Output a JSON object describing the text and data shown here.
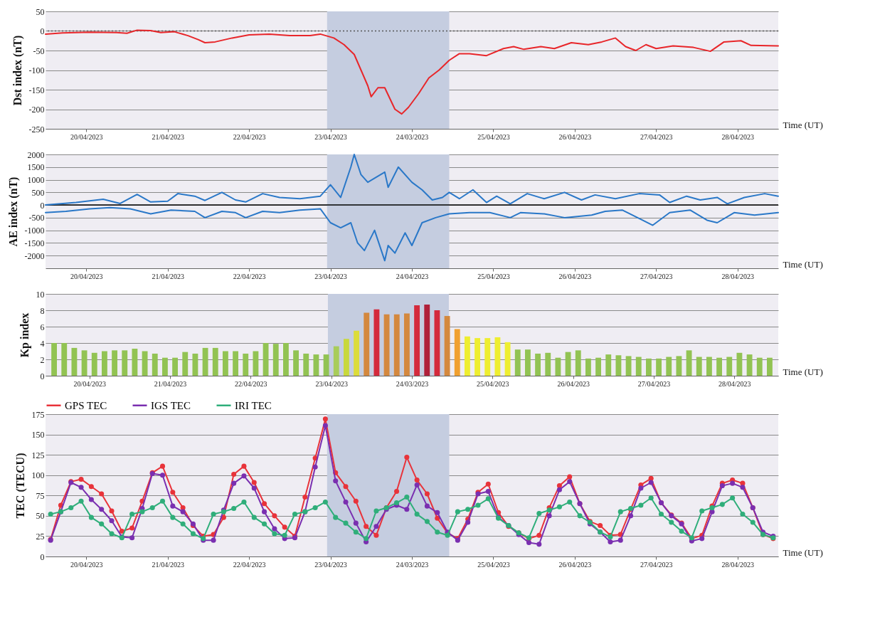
{
  "chart_data": [
    {
      "type": "line",
      "ylabel": "Dst index (nT)",
      "xlabel": "Time (UT)",
      "xlim": [
        "2023-04-20T00:00",
        "2023-04-29T00:00"
      ],
      "ylim": [
        -250,
        50
      ],
      "yticks": [
        -250,
        -200,
        -150,
        -100,
        -50,
        0,
        50
      ],
      "xticks": [
        {
          "value": "2023-04-20T12:00",
          "label": "20/04/2023"
        },
        {
          "value": "2023-04-21T12:00",
          "label": "21/04/2023"
        },
        {
          "value": "2023-04-22T12:00",
          "label": "22/04/2023"
        },
        {
          "value": "2023-04-23T12:00",
          "label": "23/04/2023"
        },
        {
          "value": "2023-04-24T12:00",
          "label": "24/03/2023"
        },
        {
          "value": "2023-04-25T12:00",
          "label": "25/04/2023"
        },
        {
          "value": "2023-04-26T12:00",
          "label": "26/04/2023"
        },
        {
          "value": "2023-04-27T12:00",
          "label": "27/04/2023"
        },
        {
          "value": "2023-04-28T12:00",
          "label": "28/04/2023"
        }
      ],
      "grid": "y",
      "bands": [
        {
          "axis": "x",
          "from": "2023-04-23T11:00",
          "to": "2023-04-24T23:00",
          "color": "#c5cde0"
        }
      ],
      "ref_lines": [
        {
          "axis": "y",
          "value": 0,
          "line_style": "dotted",
          "color": "#555555"
        }
      ],
      "series": [
        {
          "color": "#e8262a",
          "x": [
            "2023-04-20T00:00",
            "2023-04-20T05:00",
            "2023-04-20T13:00",
            "2023-04-20T21:00",
            "2023-04-21T00:00",
            "2023-04-21T03:00",
            "2023-04-21T07:00",
            "2023-04-21T10:00",
            "2023-04-21T14:00",
            "2023-04-21T18:00",
            "2023-04-21T21:00",
            "2023-04-21T23:00",
            "2023-04-22T02:00",
            "2023-04-22T07:00",
            "2023-04-22T12:00",
            "2023-04-22T18:00",
            "2023-04-23T00:00",
            "2023-04-23T06:00",
            "2023-04-23T09:00",
            "2023-04-23T13:00",
            "2023-04-23T16:00",
            "2023-04-23T19:00",
            "2023-04-23T21:00",
            "2023-04-23T23:00",
            "2023-04-24T00:00",
            "2023-04-24T02:00",
            "2023-04-24T04:00",
            "2023-04-24T07:00",
            "2023-04-24T09:00",
            "2023-04-24T11:00",
            "2023-04-24T14:00",
            "2023-04-24T17:00",
            "2023-04-24T20:00",
            "2023-04-24T23:00",
            "2023-04-25T02:00",
            "2023-04-25T05:00",
            "2023-04-25T10:00",
            "2023-04-25T15:00",
            "2023-04-25T18:00",
            "2023-04-25T21:00",
            "2023-04-26T02:00",
            "2023-04-26T06:00",
            "2023-04-26T11:00",
            "2023-04-26T16:00",
            "2023-04-26T20:00",
            "2023-04-27T00:00",
            "2023-04-27T03:00",
            "2023-04-27T06:00",
            "2023-04-27T09:00",
            "2023-04-27T12:00",
            "2023-04-27T17:00",
            "2023-04-27T23:00",
            "2023-04-28T04:00",
            "2023-04-28T08:00",
            "2023-04-28T13:00",
            "2023-04-28T16:00",
            "2023-04-29T00:00"
          ],
          "values": [
            -8,
            -5,
            -3,
            -4,
            -6,
            2,
            1,
            -4,
            -2,
            -12,
            -22,
            -30,
            -28,
            -18,
            -10,
            -8,
            -12,
            -12,
            -8,
            -18,
            -35,
            -60,
            -100,
            -140,
            -168,
            -145,
            -145,
            -200,
            -212,
            -195,
            -160,
            -120,
            -100,
            -75,
            -58,
            -58,
            -63,
            -45,
            -40,
            -47,
            -40,
            -45,
            -30,
            -35,
            -28,
            -18,
            -40,
            -50,
            -35,
            -45,
            -38,
            -42,
            -52,
            -28,
            -25,
            -37,
            -38
          ]
        }
      ]
    },
    {
      "type": "line",
      "ylabel": "AE index (nT)",
      "xlabel": "Time (UT)",
      "xlim": [
        "2023-04-20T00:00",
        "2023-04-29T00:00"
      ],
      "ylim": [
        -2500,
        2000
      ],
      "yticks": [
        -2000,
        -1500,
        -1000,
        -500,
        0,
        500,
        1000,
        1500,
        2000
      ],
      "xticks": [
        {
          "value": "2023-04-20T12:00",
          "label": "20/04/2023"
        },
        {
          "value": "2023-04-21T12:00",
          "label": "21/04/2023"
        },
        {
          "value": "2023-04-22T12:00",
          "label": "22/04/2023"
        },
        {
          "value": "2023-04-23T12:00",
          "label": "23/04/2023"
        },
        {
          "value": "2023-04-24T12:00",
          "label": "24/04/2023"
        },
        {
          "value": "2023-04-25T12:00",
          "label": "25/04/2023"
        },
        {
          "value": "2023-04-26T12:00",
          "label": "26/04/2023"
        },
        {
          "value": "2023-04-27T12:00",
          "label": "27/04/2023"
        },
        {
          "value": "2023-04-28T12:00",
          "label": "28/04/2023"
        }
      ],
      "grid": "y",
      "bands": [
        {
          "axis": "x",
          "from": "2023-04-23T11:00",
          "to": "2023-04-24T23:00",
          "color": "#c5cde0"
        }
      ],
      "ref_lines": [
        {
          "axis": "y",
          "value": 0,
          "line_style": "solid",
          "color": "#000000"
        }
      ],
      "series": [
        {
          "color": "#2a78c8",
          "x": [
            "2023-04-20T00:00",
            "2023-04-20T09:00",
            "2023-04-20T17:00",
            "2023-04-20T22:00",
            "2023-04-21T03:00",
            "2023-04-21T07:00",
            "2023-04-21T12:00",
            "2023-04-21T15:00",
            "2023-04-21T20:00",
            "2023-04-21T23:00",
            "2023-04-22T04:00",
            "2023-04-22T08:00",
            "2023-04-22T11:00",
            "2023-04-22T16:00",
            "2023-04-22T21:00",
            "2023-04-23T03:00",
            "2023-04-23T09:00",
            "2023-04-23T12:00",
            "2023-04-23T15:00",
            "2023-04-23T18:00",
            "2023-04-23T19:00",
            "2023-04-23T21:00",
            "2023-04-23T23:00",
            "2023-04-24T04:00",
            "2023-04-24T05:00",
            "2023-04-24T08:00",
            "2023-04-24T12:00",
            "2023-04-24T15:00",
            "2023-04-24T18:00",
            "2023-04-24T21:00",
            "2023-04-24T23:00",
            "2023-04-25T02:00",
            "2023-04-25T06:00",
            "2023-04-25T10:00",
            "2023-04-25T13:00",
            "2023-04-25T17:00",
            "2023-04-25T22:00",
            "2023-04-26T03:00",
            "2023-04-26T09:00",
            "2023-04-26T14:00",
            "2023-04-26T18:00",
            "2023-04-27T00:00",
            "2023-04-27T07:00",
            "2023-04-27T13:00",
            "2023-04-27T16:00",
            "2023-04-27T21:00",
            "2023-04-28T01:00",
            "2023-04-28T06:00",
            "2023-04-28T09:00",
            "2023-04-28T14:00",
            "2023-04-28T20:00",
            "2023-04-29T00:00"
          ],
          "values": [
            0,
            100,
            230,
            60,
            420,
            120,
            150,
            450,
            350,
            180,
            500,
            200,
            120,
            450,
            300,
            250,
            350,
            800,
            300,
            1500,
            2000,
            1200,
            900,
            1300,
            700,
            1500,
            900,
            600,
            200,
            300,
            500,
            250,
            600,
            100,
            350,
            50,
            450,
            250,
            500,
            200,
            400,
            250,
            450,
            400,
            100,
            350,
            200,
            300,
            50,
            300,
            450,
            350
          ]
        },
        {
          "color": "#2a78c8",
          "x": [
            "2023-04-20T00:00",
            "2023-04-20T06:00",
            "2023-04-20T13:00",
            "2023-04-20T19:00",
            "2023-04-21T01:00",
            "2023-04-21T07:00",
            "2023-04-21T13:00",
            "2023-04-21T20:00",
            "2023-04-21T23:00",
            "2023-04-22T04:00",
            "2023-04-22T08:00",
            "2023-04-22T11:00",
            "2023-04-22T16:00",
            "2023-04-22T21:00",
            "2023-04-23T03:00",
            "2023-04-23T09:00",
            "2023-04-23T12:00",
            "2023-04-23T15:00",
            "2023-04-23T18:00",
            "2023-04-23T20:00",
            "2023-04-23T22:00",
            "2023-04-24T01:00",
            "2023-04-24T04:00",
            "2023-04-24T05:00",
            "2023-04-24T07:00",
            "2023-04-24T10:00",
            "2023-04-24T12:00",
            "2023-04-24T15:00",
            "2023-04-24T19:00",
            "2023-04-24T23:00",
            "2023-04-25T05:00",
            "2023-04-25T11:00",
            "2023-04-25T17:00",
            "2023-04-25T20:00",
            "2023-04-26T03:00",
            "2023-04-26T09:00",
            "2023-04-26T17:00",
            "2023-04-26T21:00",
            "2023-04-27T02:00",
            "2023-04-27T08:00",
            "2023-04-27T11:00",
            "2023-04-27T16:00",
            "2023-04-27T22:00",
            "2023-04-28T03:00",
            "2023-04-28T06:00",
            "2023-04-28T11:00",
            "2023-04-28T17:00",
            "2023-04-29T00:00"
          ],
          "values": [
            -300,
            -250,
            -150,
            -100,
            -150,
            -350,
            -200,
            -250,
            -500,
            -250,
            -300,
            -500,
            -250,
            -300,
            -200,
            -150,
            -700,
            -900,
            -700,
            -1500,
            -1800,
            -1000,
            -2200,
            -1600,
            -1900,
            -1100,
            -1600,
            -700,
            -500,
            -350,
            -300,
            -300,
            -500,
            -300,
            -350,
            -500,
            -400,
            -250,
            -200,
            -600,
            -800,
            -300,
            -200,
            -600,
            -700,
            -300,
            -400,
            -300
          ]
        }
      ]
    },
    {
      "type": "bar",
      "ylabel": "Kp index",
      "xlabel": "Time (UT)",
      "xlim": [
        "2023-04-20T00:00",
        "2023-04-29T00:00"
      ],
      "ylim": [
        0,
        10
      ],
      "yticks": [
        0,
        2,
        4,
        6,
        8,
        10
      ],
      "xticks": [
        {
          "value": "2023-04-20T12:00",
          "label": "20/04/2023"
        },
        {
          "value": "2023-04-21T12:00",
          "label": "21/04/2023"
        },
        {
          "value": "2023-04-22T12:00",
          "label": "22/04/2023"
        },
        {
          "value": "2023-04-23T12:00",
          "label": "23/04/2023"
        },
        {
          "value": "2023-04-24T12:00",
          "label": "24/03/2023"
        },
        {
          "value": "2023-04-25T12:00",
          "label": "25/04/2023"
        },
        {
          "value": "2023-04-26T12:00",
          "label": "26/04/2023"
        },
        {
          "value": "2023-04-27T12:00",
          "label": "27/04/2023"
        },
        {
          "value": "2023-04-28T12:00",
          "label": "28/04/2023"
        }
      ],
      "grid": "y",
      "bands": [
        {
          "axis": "x",
          "from": "2023-04-23T11:00",
          "to": "2023-04-24T23:00",
          "color": "#c5cde0"
        }
      ],
      "x": [
        "2023-04-20T01:30",
        "2023-04-20T04:30",
        "2023-04-20T07:30",
        "2023-04-20T10:30",
        "2023-04-20T13:30",
        "2023-04-20T16:30",
        "2023-04-20T19:30",
        "2023-04-20T22:30",
        "2023-04-21T01:30",
        "2023-04-21T04:30",
        "2023-04-21T07:30",
        "2023-04-21T10:30",
        "2023-04-21T13:30",
        "2023-04-21T16:30",
        "2023-04-21T19:30",
        "2023-04-21T22:30",
        "2023-04-22T01:30",
        "2023-04-22T04:30",
        "2023-04-22T07:30",
        "2023-04-22T10:30",
        "2023-04-22T13:30",
        "2023-04-22T16:30",
        "2023-04-22T19:30",
        "2023-04-22T22:30",
        "2023-04-23T01:30",
        "2023-04-23T04:30",
        "2023-04-23T07:30",
        "2023-04-23T10:30",
        "2023-04-23T13:30",
        "2023-04-23T16:30",
        "2023-04-23T19:30",
        "2023-04-23T22:30",
        "2023-04-24T01:30",
        "2023-04-24T04:30",
        "2023-04-24T07:30",
        "2023-04-24T10:30",
        "2023-04-24T13:30",
        "2023-04-24T16:30",
        "2023-04-24T19:30",
        "2023-04-24T22:30",
        "2023-04-25T01:30",
        "2023-04-25T04:30",
        "2023-04-25T07:30",
        "2023-04-25T10:30",
        "2023-04-25T13:30",
        "2023-04-25T16:30",
        "2023-04-25T19:30",
        "2023-04-25T22:30",
        "2023-04-26T01:30",
        "2023-04-26T04:30",
        "2023-04-26T07:30",
        "2023-04-26T10:30",
        "2023-04-26T13:30",
        "2023-04-26T16:30",
        "2023-04-26T19:30",
        "2023-04-26T22:30",
        "2023-04-27T01:30",
        "2023-04-27T04:30",
        "2023-04-27T07:30",
        "2023-04-27T10:30",
        "2023-04-27T13:30",
        "2023-04-27T16:30",
        "2023-04-27T19:30",
        "2023-04-27T22:30",
        "2023-04-28T01:30",
        "2023-04-28T04:30",
        "2023-04-28T07:30",
        "2023-04-28T10:30",
        "2023-04-28T13:30",
        "2023-04-28T16:30",
        "2023-04-28T19:30",
        "2023-04-28T22:30"
      ],
      "values": [
        4.0,
        4.0,
        3.4,
        3.1,
        2.8,
        3.0,
        3.1,
        3.1,
        3.3,
        3.0,
        2.7,
        2.2,
        2.2,
        2.9,
        2.7,
        3.4,
        3.4,
        3.0,
        3.0,
        2.7,
        3.0,
        4.0,
        3.9,
        4.0,
        3.1,
        2.7,
        2.6,
        2.6,
        3.6,
        4.5,
        5.5,
        7.7,
        8.1,
        7.5,
        7.5,
        7.6,
        8.6,
        8.7,
        8.0,
        7.3,
        5.7,
        4.8,
        4.6,
        4.6,
        4.7,
        4.1,
        3.2,
        3.2,
        2.7,
        2.8,
        2.2,
        2.9,
        3.1,
        2.1,
        2.2,
        2.6,
        2.5,
        2.4,
        2.3,
        2.1,
        2.1,
        2.3,
        2.4,
        3.1,
        2.3,
        2.3,
        2.2,
        2.3,
        2.8,
        2.6,
        2.2,
        2.2
      ],
      "colors": [
        "#92c353",
        "#92c353",
        "#92c353",
        "#92c353",
        "#92c353",
        "#92c353",
        "#92c353",
        "#92c353",
        "#92c353",
        "#92c353",
        "#92c353",
        "#92c353",
        "#92c353",
        "#92c353",
        "#92c353",
        "#92c353",
        "#92c353",
        "#92c353",
        "#92c353",
        "#92c353",
        "#92c353",
        "#92c353",
        "#92c353",
        "#92c353",
        "#92c353",
        "#92c353",
        "#92c353",
        "#92c353",
        "#a8cc5a",
        "#c8d83c",
        "#dcdc3a",
        "#d4883e",
        "#d42a3c",
        "#d4883e",
        "#d4883e",
        "#d4883e",
        "#d42a3c",
        "#b0203a",
        "#d42a3c",
        "#d4883e",
        "#f0a030",
        "#eeee30",
        "#eeee30",
        "#eeee30",
        "#eeee30",
        "#eeee30",
        "#92c353",
        "#92c353",
        "#92c353",
        "#92c353",
        "#92c353",
        "#92c353",
        "#92c353",
        "#92c353",
        "#92c353",
        "#92c353",
        "#92c353",
        "#92c353",
        "#92c353",
        "#92c353",
        "#92c353",
        "#92c353",
        "#92c353",
        "#92c353",
        "#92c353",
        "#92c353",
        "#92c353",
        "#92c353",
        "#92c353",
        "#92c353",
        "#92c353",
        "#92c353"
      ]
    },
    {
      "type": "line",
      "ylabel": "TEC  (TECU)",
      "xlabel": "Time (UT)",
      "xlim": [
        "2023-04-20T00:00",
        "2023-04-29T00:00"
      ],
      "ylim": [
        0,
        175
      ],
      "yticks": [
        0,
        25,
        50,
        75,
        100,
        125,
        150,
        175
      ],
      "xticks": [
        {
          "value": "2023-04-20T12:00",
          "label": "20/04/2023"
        },
        {
          "value": "2023-04-21T12:00",
          "label": "21/04/2023"
        },
        {
          "value": "2023-04-22T12:00",
          "label": "22/04/2023"
        },
        {
          "value": "2023-04-23T12:00",
          "label": "23/04/2023"
        },
        {
          "value": "2023-04-24T12:00",
          "label": "24/03/2023"
        },
        {
          "value": "2023-04-25T12:00",
          "label": "25/04/2023"
        },
        {
          "value": "2023-04-26T12:00",
          "label": "26/04/2023"
        },
        {
          "value": "2023-04-27T12:00",
          "label": "27/04/2023"
        },
        {
          "value": "2023-04-28T12:00",
          "label": "28/04/2023"
        }
      ],
      "grid": "y",
      "legend": "top",
      "marker": "circle",
      "bands": [
        {
          "axis": "x",
          "from": "2023-04-23T11:00",
          "to": "2023-04-24T23:00",
          "color": "#c5cde0"
        }
      ],
      "x": [
        "2023-04-20T01:30",
        "2023-04-20T04:30",
        "2023-04-20T07:30",
        "2023-04-20T10:30",
        "2023-04-20T13:30",
        "2023-04-20T16:30",
        "2023-04-20T19:30",
        "2023-04-20T22:30",
        "2023-04-21T01:30",
        "2023-04-21T04:30",
        "2023-04-21T07:30",
        "2023-04-21T10:30",
        "2023-04-21T13:30",
        "2023-04-21T16:30",
        "2023-04-21T19:30",
        "2023-04-21T22:30",
        "2023-04-22T01:30",
        "2023-04-22T04:30",
        "2023-04-22T07:30",
        "2023-04-22T10:30",
        "2023-04-22T13:30",
        "2023-04-22T16:30",
        "2023-04-22T19:30",
        "2023-04-22T22:30",
        "2023-04-23T01:30",
        "2023-04-23T04:30",
        "2023-04-23T07:30",
        "2023-04-23T10:30",
        "2023-04-23T13:30",
        "2023-04-23T16:30",
        "2023-04-23T19:30",
        "2023-04-23T22:30",
        "2023-04-24T01:30",
        "2023-04-24T04:30",
        "2023-04-24T07:30",
        "2023-04-24T10:30",
        "2023-04-24T13:30",
        "2023-04-24T16:30",
        "2023-04-24T19:30",
        "2023-04-24T22:30",
        "2023-04-25T01:30",
        "2023-04-25T04:30",
        "2023-04-25T07:30",
        "2023-04-25T10:30",
        "2023-04-25T13:30",
        "2023-04-25T16:30",
        "2023-04-25T19:30",
        "2023-04-25T22:30",
        "2023-04-26T01:30",
        "2023-04-26T04:30",
        "2023-04-26T07:30",
        "2023-04-26T10:30",
        "2023-04-26T13:30",
        "2023-04-26T16:30",
        "2023-04-26T19:30",
        "2023-04-26T22:30",
        "2023-04-27T01:30",
        "2023-04-27T04:30",
        "2023-04-27T07:30",
        "2023-04-27T10:30",
        "2023-04-27T13:30",
        "2023-04-27T16:30",
        "2023-04-27T19:30",
        "2023-04-27T22:30",
        "2023-04-28T01:30",
        "2023-04-28T04:30",
        "2023-04-28T07:30",
        "2023-04-28T10:30",
        "2023-04-28T13:30",
        "2023-04-28T16:30",
        "2023-04-28T19:30",
        "2023-04-28T22:30"
      ],
      "series": [
        {
          "name": "GPS TEC",
          "color": "#e8333a",
          "values": [
            21,
            63,
            92,
            95,
            86,
            77,
            56,
            31,
            35,
            68,
            103,
            111,
            79,
            60,
            38,
            25,
            27,
            48,
            101,
            111,
            91,
            65,
            50,
            36,
            25,
            73,
            121,
            169,
            103,
            86,
            68,
            37,
            26,
            60,
            80,
            122,
            94,
            77,
            47,
            29,
            22,
            46,
            79,
            89,
            54,
            37,
            29,
            22,
            26,
            60,
            87,
            98,
            65,
            43,
            38,
            26,
            27,
            58,
            88,
            96,
            66,
            51,
            41,
            22,
            26,
            62,
            90,
            94,
            90,
            60,
            27,
            22
          ]
        },
        {
          "name": "IGS TEC",
          "color": "#7a2fb0",
          "values": [
            20,
            55,
            91,
            85,
            70,
            58,
            44,
            24,
            23,
            59,
            102,
            100,
            62,
            55,
            40,
            20,
            20,
            57,
            90,
            99,
            84,
            55,
            34,
            22,
            23,
            55,
            110,
            161,
            93,
            67,
            41,
            18,
            37,
            58,
            63,
            58,
            88,
            62,
            54,
            30,
            20,
            42,
            77,
            80,
            48,
            38,
            27,
            17,
            15,
            50,
            82,
            92,
            65,
            40,
            30,
            18,
            20,
            50,
            84,
            91,
            66,
            50,
            40,
            19,
            22,
            55,
            87,
            90,
            85,
            60,
            30,
            25
          ]
        },
        {
          "name": "IRI TEC",
          "color": "#2fae7a",
          "values": [
            52,
            55,
            60,
            68,
            48,
            40,
            28,
            23,
            52,
            55,
            60,
            68,
            48,
            40,
            28,
            22,
            52,
            55,
            59,
            67,
            48,
            40,
            28,
            26,
            52,
            55,
            60,
            67,
            48,
            41,
            30,
            22,
            56,
            60,
            66,
            73,
            52,
            43,
            30,
            26,
            55,
            58,
            63,
            71,
            47,
            38,
            29,
            23,
            53,
            57,
            61,
            67,
            50,
            42,
            30,
            24,
            55,
            59,
            63,
            72,
            52,
            42,
            31,
            23,
            56,
            60,
            64,
            72,
            52,
            42,
            27,
            23
          ]
        }
      ]
    }
  ]
}
